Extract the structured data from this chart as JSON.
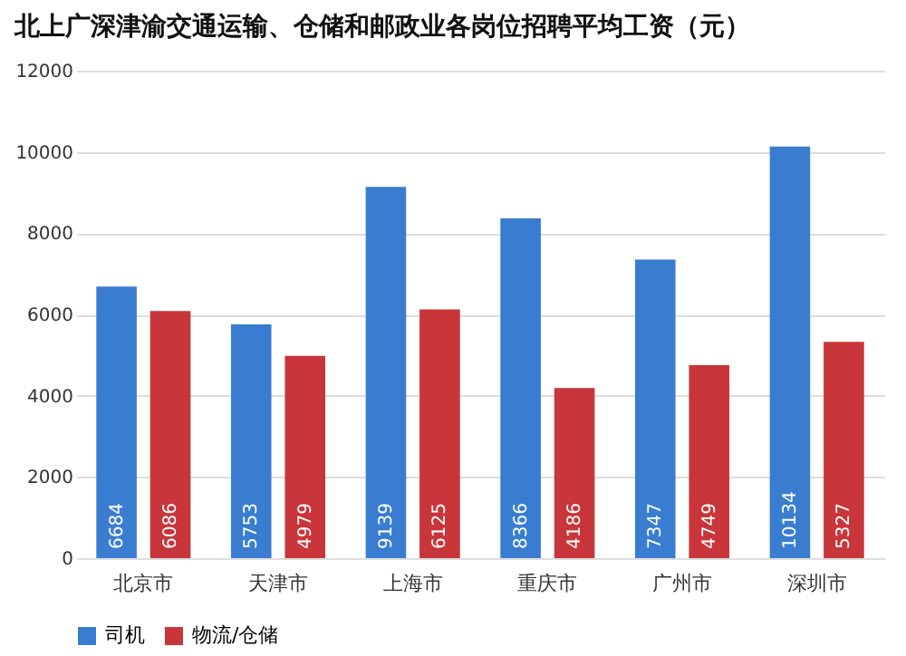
{
  "chart_data": {
    "type": "bar",
    "title": "北上广深津渝交通运输、仓储和邮政业各岗位招聘平均工资（元）",
    "categories": [
      "北京市",
      "天津市",
      "上海市",
      "重庆市",
      "广州市",
      "深圳市"
    ],
    "series": [
      {
        "name": "司机",
        "color": "#3a7dd0",
        "values": [
          6684,
          5753,
          9139,
          8366,
          7347,
          10134
        ]
      },
      {
        "name": "物流/仓储",
        "color": "#c8353a",
        "values": [
          6086,
          4979,
          6125,
          4186,
          4749,
          5327
        ]
      }
    ],
    "ylim": [
      0,
      12000
    ],
    "yticks": [
      0,
      2000,
      4000,
      6000,
      8000,
      10000,
      12000
    ],
    "grid": "y",
    "legend": "bottom",
    "data_labels": true
  }
}
